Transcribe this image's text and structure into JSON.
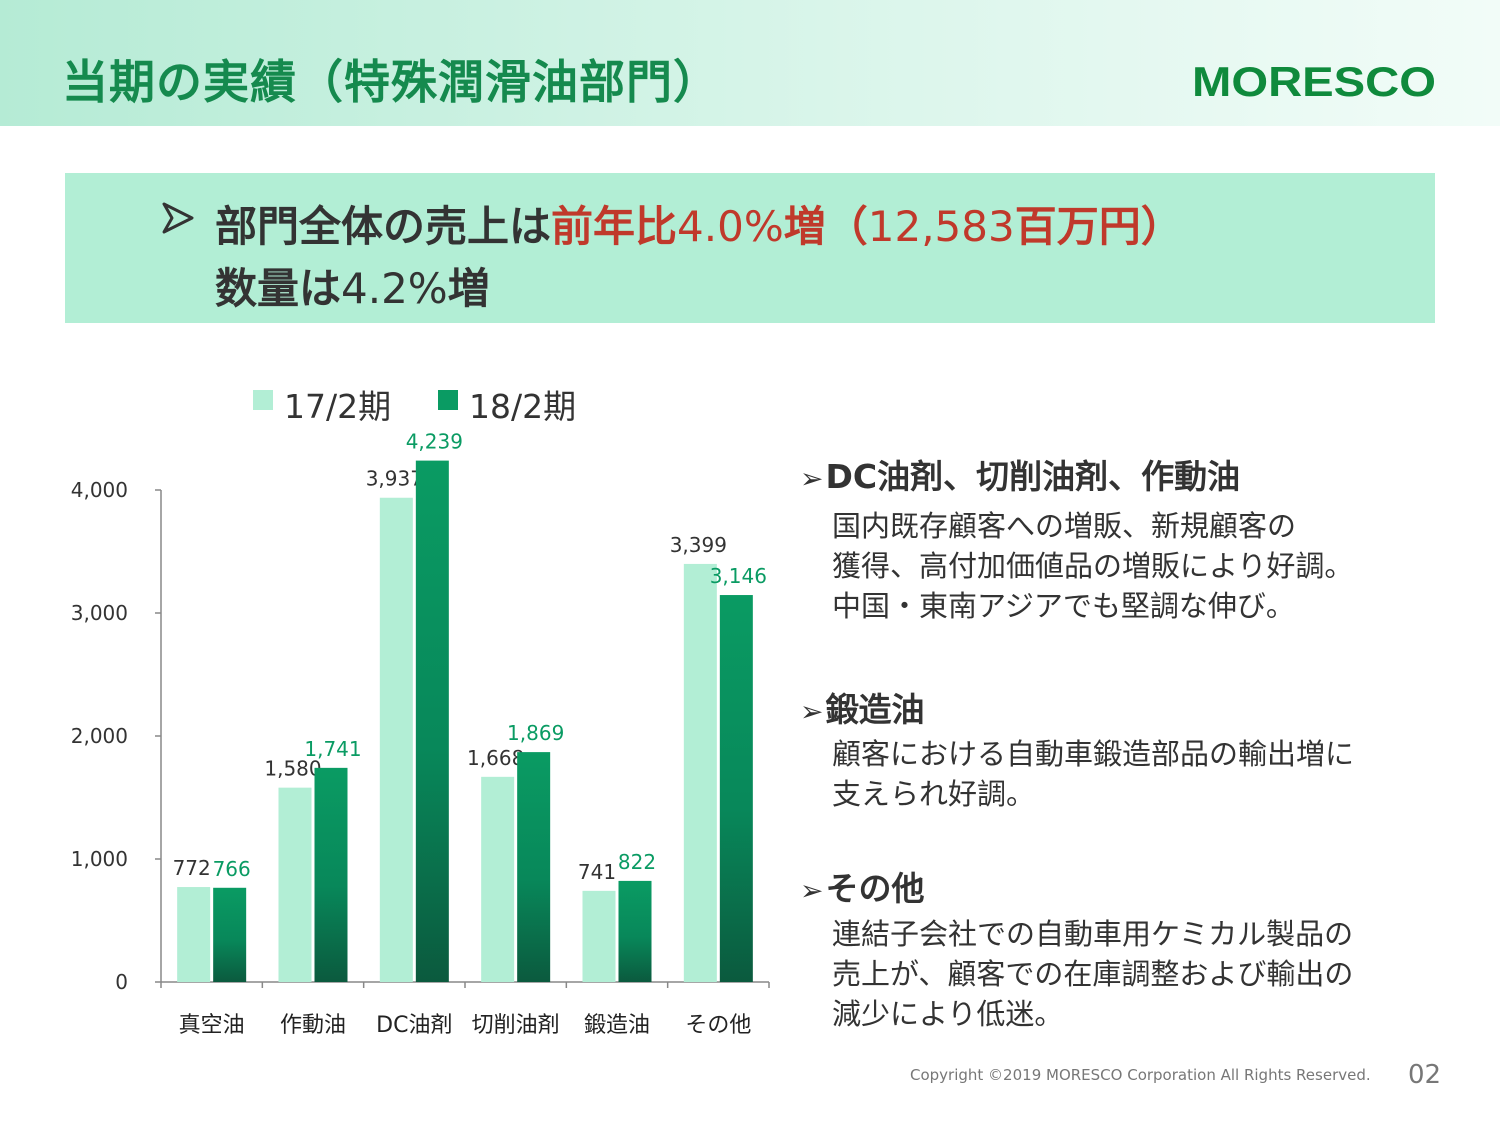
{
  "header": {
    "title": "当期の実績（特殊潤滑油部門）",
    "logo_text": "MORESCO"
  },
  "summary": {
    "line1": [
      {
        "text": "部門全体の売上は",
        "style": "normal"
      },
      {
        "text": "前年比",
        "style": "red"
      },
      {
        "text": "4.0%",
        "style": "red-thin"
      },
      {
        "text": "増（",
        "style": "red"
      },
      {
        "text": "12,583",
        "style": "red-thin"
      },
      {
        "text": "百万円）",
        "style": "red"
      }
    ],
    "line2": [
      {
        "text": "数量は",
        "style": "normal"
      },
      {
        "text": "4.2%",
        "style": "thin"
      },
      {
        "text": "増",
        "style": "normal"
      }
    ]
  },
  "chart_data": {
    "type": "bar",
    "categories": [
      "真空油",
      "作動油",
      "DC油剤",
      "切削油剤",
      "鍛造油",
      "その他"
    ],
    "series": [
      {
        "name": "17/2期",
        "values": [
          772,
          1580,
          3937,
          1668,
          741,
          3399
        ],
        "color": "#b2eed5",
        "label_color": "#333333"
      },
      {
        "name": "18/2期",
        "values": [
          766,
          1741,
          4239,
          1869,
          822,
          3146
        ],
        "color": "#0a9b63",
        "label_color": "#0a9b63"
      }
    ],
    "value_labels": {
      "17/2期": [
        "772",
        "1,580",
        "3,937",
        "1,668",
        "741",
        "3,399"
      ],
      "18/2期": [
        "766",
        "1,741",
        "4,239",
        "1,869",
        "822",
        "3,146"
      ]
    },
    "yticks": [
      0,
      1000,
      2000,
      3000,
      4000
    ],
    "ytick_labels": [
      "0",
      "1,000",
      "2,000",
      "3,000",
      "4,000"
    ],
    "ylim": [
      0,
      4000
    ],
    "legend_position": "top",
    "grid": false
  },
  "sections": [
    {
      "heading": "DC油剤、切削油剤、作動油",
      "lines": [
        "国内既存顧客への増販、新規顧客の",
        "獲得、高付加価値品の増販により好調。",
        "中国・東南アジアでも堅調な伸び。"
      ]
    },
    {
      "heading": "鍛造油",
      "lines": [
        "顧客における自動車鍛造部品の輸出増に",
        "支えられ好調。"
      ]
    },
    {
      "heading": "その他",
      "lines": [
        "連結子会社での自動車用ケミカル製品の",
        "売上が、顧客での在庫調整および輸出の",
        "減少により低迷。"
      ]
    }
  ],
  "bullet_glyph": "➢",
  "footer": {
    "copyright": "Copyright ©2019 MORESCO Corporation All Rights Reserved.",
    "page": "02"
  },
  "colors": {
    "title_green": "#158a4e",
    "summary_bg": "#b2eed5",
    "highlight_red": "#c0392b",
    "bar_light": "#b2eed5",
    "bar_dark": "#0a9b63"
  }
}
